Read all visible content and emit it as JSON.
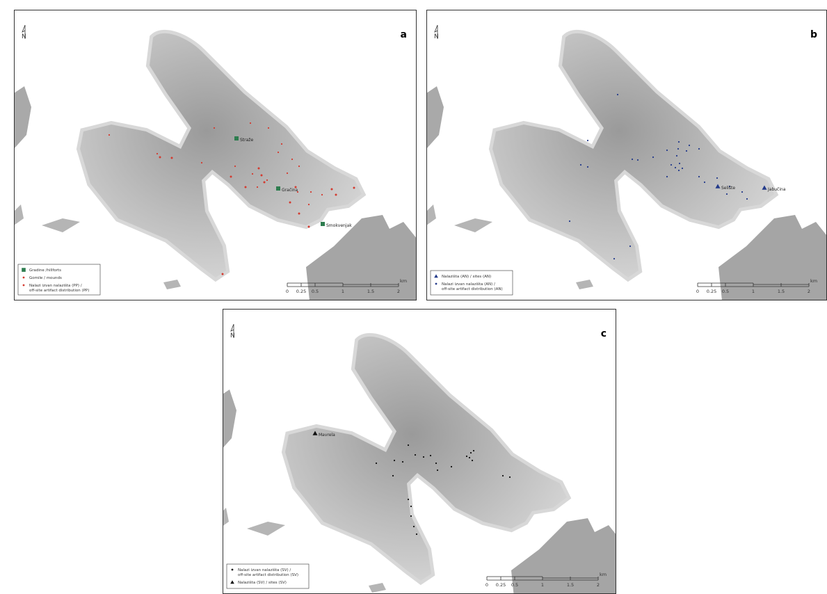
{
  "north": "N",
  "scale": {
    "ticks": [
      "0",
      "0.25",
      "0.5",
      "1",
      "1.5",
      "2"
    ],
    "unit": "km"
  },
  "panels": [
    {
      "letter": "a",
      "site_labels": [
        "Straže",
        "Gračina",
        "Smokvenjak"
      ],
      "legend": [
        [
          "Gradine /hillforts"
        ],
        [
          "Gomile / mounds"
        ],
        [
          "Nalazi izvan nalazišta (PP) /",
          "off-site artifact distribution (PP)"
        ]
      ]
    },
    {
      "letter": "b",
      "site_labels": [
        "Selište",
        "Jabučina"
      ],
      "legend": [
        [
          "Nalazišta (AN) / sites (AN)"
        ],
        [
          "Nalazi izvan nalazišta (AN) /",
          "off-site artifact distribution (AN)"
        ]
      ]
    },
    {
      "letter": "c",
      "site_labels": [
        "Mavrela"
      ],
      "legend": [
        [
          "Nalazi izvan nalazišta (SV) /",
          "off-site artifact distribution (SV)"
        ],
        [
          "Nalazišta (SV) / sites (SV)"
        ]
      ]
    }
  ]
}
